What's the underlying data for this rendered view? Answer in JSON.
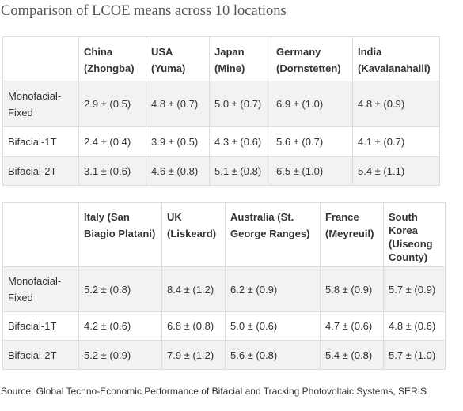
{
  "title": "Comparison of LCOE means across 10 locations",
  "row_labels": [
    "Monofacial-Fixed",
    "Bifacial-1T",
    "Bifacial-2T"
  ],
  "table1": {
    "columns": [
      "China (Zhongba)",
      "USA (Yuma)",
      "Japan (Mine)",
      "Germany (Dornstetten)",
      "India (Kavalanahalli)"
    ],
    "rows": [
      [
        "2.9 ± (0.5)",
        "4.8 ± (0.7)",
        "5.0 ± (0.7)",
        "6.9 ± (1.0)",
        "4.8 ± (0.9)"
      ],
      [
        "2.4 ± (0.4)",
        "3.9 ± (0.5)",
        "4.3 ± (0.6)",
        "5.6 ± (0.7)",
        "4.1 ± (0.7)"
      ],
      [
        "3.1 ± (0.6)",
        "4.6 ± (0.8)",
        "5.1 ± (0.8)",
        "6.5 ± (1.0)",
        "5.4 ± (1.1)"
      ]
    ]
  },
  "table2": {
    "columns": [
      "Italy (San Biagio Platani)",
      "UK (Liskeard)",
      "Australia (St. George Ranges)",
      "France (Meyreuil)",
      "South Korea (Uiseong County)"
    ],
    "rows": [
      [
        "5.2 ± (0.8)",
        "8.4 ± (1.2)",
        "6.2 ± (0.9)",
        "5.8 ± (0.9)",
        "5.7 ± (0.9)"
      ],
      [
        "4.2 ± (0.6)",
        "6.8 ± (0.8)",
        "5.0 ± (0.6)",
        "4.7 ± (0.6)",
        "4.8 ± (0.6)"
      ],
      [
        "5.2 ± (0.9)",
        "7.9 ± (1.2)",
        "5.6 ± (0.8)",
        "5.4 ± (0.8)",
        "5.7 ± (1.0)"
      ]
    ]
  },
  "source": "Source: Global Techno-Economic Performance of Bifacial and Tracking Photovoltaic Systems, SERIS"
}
